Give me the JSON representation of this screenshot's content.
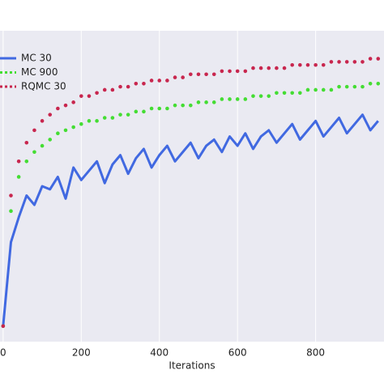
{
  "chart_data": {
    "type": "line",
    "x_label": "Iterations",
    "x": [
      0,
      20,
      40,
      60,
      80,
      100,
      120,
      140,
      160,
      180,
      200,
      220,
      240,
      260,
      280,
      300,
      320,
      340,
      360,
      380,
      400,
      420,
      440,
      460,
      480,
      500,
      520,
      540,
      560,
      580,
      600,
      620,
      640,
      660,
      680,
      700,
      720,
      740,
      760,
      780,
      800,
      820,
      840,
      860,
      880,
      900,
      920,
      940,
      960
    ],
    "series": [
      {
        "name": "MC 30",
        "color": "#4169e1",
        "style": "solid",
        "values": [
          5,
          32,
          40,
          47,
          44,
          50,
          49,
          53,
          46,
          56,
          52,
          55,
          58,
          51,
          57,
          60,
          54,
          59,
          62,
          56,
          60,
          63,
          58,
          61,
          64,
          59,
          63,
          65,
          61,
          66,
          63,
          67,
          62,
          66,
          68,
          64,
          67,
          70,
          65,
          68,
          71,
          66,
          69,
          72,
          67,
          70,
          73,
          68,
          71
        ]
      },
      {
        "name": "MC 900",
        "color": "#44dd33",
        "style": "dotted",
        "values": [
          5,
          42,
          53,
          58,
          61,
          63,
          65,
          67,
          68,
          69,
          70,
          71,
          71,
          72,
          72,
          73,
          73,
          74,
          74,
          75,
          75,
          75,
          76,
          76,
          76,
          77,
          77,
          77,
          78,
          78,
          78,
          78,
          79,
          79,
          79,
          80,
          80,
          80,
          80,
          81,
          81,
          81,
          81,
          82,
          82,
          82,
          82,
          83,
          83
        ]
      },
      {
        "name": "RQMC 30",
        "color": "#c8264e",
        "style": "dotted",
        "values": [
          5,
          47,
          58,
          64,
          68,
          71,
          73,
          75,
          76,
          77,
          79,
          79,
          80,
          81,
          81,
          82,
          82,
          83,
          83,
          84,
          84,
          84,
          85,
          85,
          86,
          86,
          86,
          86,
          87,
          87,
          87,
          87,
          88,
          88,
          88,
          88,
          88,
          89,
          89,
          89,
          89,
          89,
          90,
          90,
          90,
          90,
          90,
          91,
          91
        ]
      }
    ],
    "xlim": [
      -8,
      975
    ],
    "xticks": [
      0,
      200,
      400,
      600,
      800
    ],
    "ylim": [
      0,
      100
    ],
    "grid": true,
    "legend": "upper left"
  }
}
